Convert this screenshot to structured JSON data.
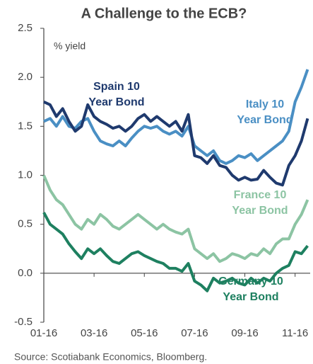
{
  "chart_data": {
    "type": "line",
    "title": "A Challenge to the ECB?",
    "y_label": "% yield",
    "source": "Source: Scotiabank Economics, Bloomberg.",
    "x": [
      0,
      0.25,
      0.5,
      0.75,
      1,
      1.25,
      1.5,
      1.75,
      2,
      2.25,
      2.5,
      2.75,
      3,
      3.25,
      3.5,
      3.75,
      4,
      4.25,
      4.5,
      4.75,
      5,
      5.25,
      5.5,
      5.75,
      6,
      6.25,
      6.5,
      6.75,
      7,
      7.25,
      7.5,
      7.75,
      8,
      8.25,
      8.5,
      8.75,
      9,
      9.25,
      9.5,
      9.75,
      10,
      10.25,
      10.5
    ],
    "xlim": [
      0,
      10.6
    ],
    "xticks": [
      {
        "value": 0,
        "label": "01-16"
      },
      {
        "value": 2,
        "label": "03-16"
      },
      {
        "value": 4,
        "label": "05-16"
      },
      {
        "value": 6,
        "label": "07-16"
      },
      {
        "value": 8,
        "label": "09-16"
      },
      {
        "value": 10,
        "label": "11-16"
      }
    ],
    "ylim": [
      -0.5,
      2.5
    ],
    "yticks": [
      {
        "value": -0.5,
        "label": "-0.5"
      },
      {
        "value": 0,
        "label": "0.0"
      },
      {
        "value": 0.5,
        "label": "0.5"
      },
      {
        "value": 1,
        "label": "1.0"
      },
      {
        "value": 1.5,
        "label": "1.5"
      },
      {
        "value": 2,
        "label": "2.0"
      },
      {
        "value": 2.5,
        "label": "2.5"
      }
    ],
    "series": [
      {
        "name": "France 10 Year Bond",
        "color": "#8cc4a3",
        "values": [
          1.0,
          0.85,
          0.75,
          0.7,
          0.6,
          0.5,
          0.45,
          0.55,
          0.5,
          0.6,
          0.55,
          0.48,
          0.45,
          0.5,
          0.55,
          0.6,
          0.55,
          0.5,
          0.45,
          0.5,
          0.45,
          0.42,
          0.4,
          0.45,
          0.25,
          0.2,
          0.15,
          0.2,
          0.12,
          0.15,
          0.2,
          0.18,
          0.15,
          0.2,
          0.18,
          0.25,
          0.2,
          0.3,
          0.35,
          0.35,
          0.5,
          0.6,
          0.75
        ]
      },
      {
        "name": "Germany 10 Year Bond",
        "color": "#1e8060",
        "values": [
          0.62,
          0.5,
          0.45,
          0.4,
          0.3,
          0.22,
          0.15,
          0.25,
          0.2,
          0.25,
          0.18,
          0.12,
          0.1,
          0.15,
          0.2,
          0.22,
          0.18,
          0.15,
          0.12,
          0.1,
          0.05,
          0.05,
          0.02,
          0.1,
          -0.08,
          -0.12,
          -0.18,
          -0.05,
          -0.1,
          -0.08,
          -0.05,
          -0.1,
          -0.12,
          -0.05,
          -0.1,
          -0.05,
          -0.08,
          0.0,
          0.05,
          0.08,
          0.22,
          0.2,
          0.28
        ]
      },
      {
        "name": "Italy 10 Year Bond",
        "color": "#4a8fc4",
        "values": [
          1.55,
          1.58,
          1.5,
          1.6,
          1.5,
          1.48,
          1.55,
          1.58,
          1.45,
          1.35,
          1.32,
          1.3,
          1.35,
          1.3,
          1.38,
          1.45,
          1.5,
          1.48,
          1.5,
          1.45,
          1.42,
          1.45,
          1.4,
          1.5,
          1.3,
          1.25,
          1.2,
          1.25,
          1.15,
          1.12,
          1.15,
          1.2,
          1.18,
          1.22,
          1.15,
          1.2,
          1.25,
          1.3,
          1.35,
          1.45,
          1.75,
          1.9,
          2.08
        ]
      },
      {
        "name": "Spain 10 Year Bond",
        "color": "#1f3a6e",
        "values": [
          1.75,
          1.72,
          1.6,
          1.68,
          1.55,
          1.45,
          1.5,
          1.72,
          1.6,
          1.55,
          1.52,
          1.48,
          1.5,
          1.45,
          1.5,
          1.58,
          1.62,
          1.55,
          1.6,
          1.55,
          1.5,
          1.55,
          1.45,
          1.62,
          1.2,
          1.18,
          1.12,
          1.2,
          1.1,
          1.08,
          1.0,
          0.95,
          0.98,
          0.95,
          0.96,
          1.05,
          0.98,
          0.92,
          0.9,
          1.1,
          1.2,
          1.35,
          1.58
        ]
      }
    ]
  }
}
